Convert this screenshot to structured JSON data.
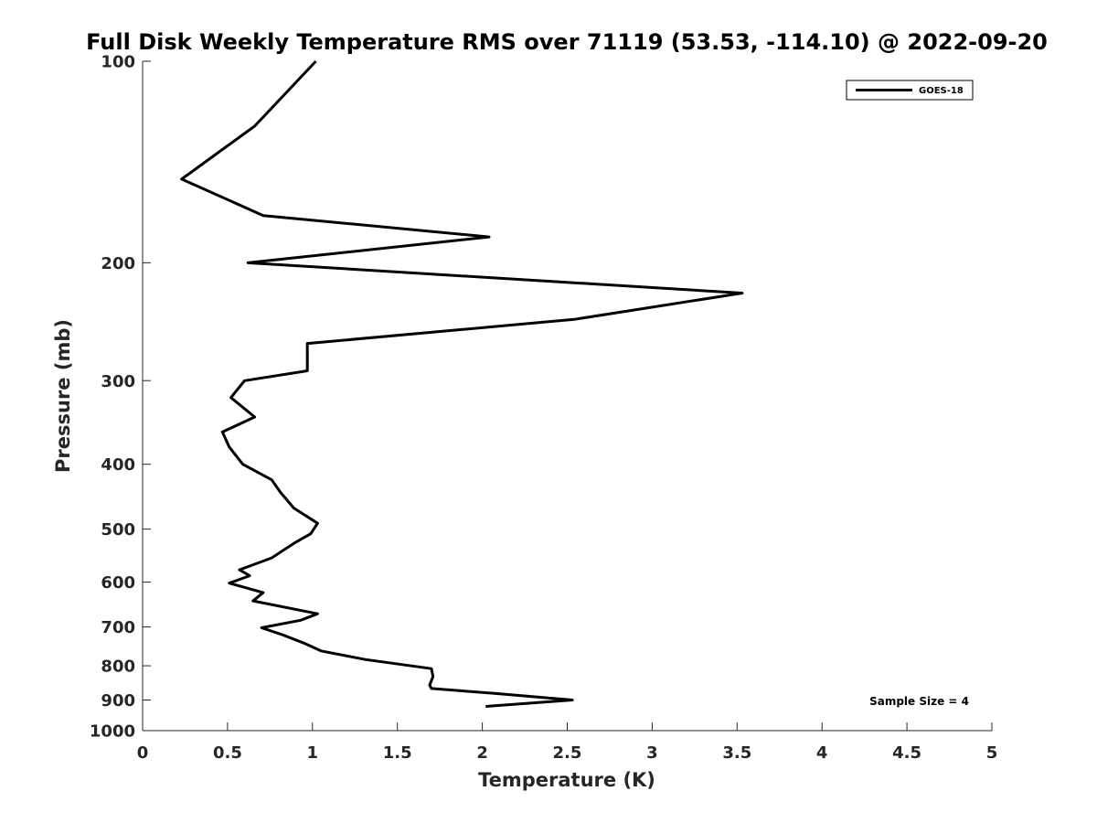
{
  "chart_data": {
    "type": "line",
    "title": "Full Disk Weekly Temperature RMS over 71119 (53.53, -114.10) @ 2022-09-20",
    "xlabel": "Temperature (K)",
    "ylabel": "Pressure (mb)",
    "xlim": [
      0,
      5
    ],
    "ylim": [
      100,
      1000
    ],
    "y_scale": "log",
    "y_reversed": true,
    "x_ticks": [
      0,
      0.5,
      1,
      1.5,
      2,
      2.5,
      3,
      3.5,
      4,
      4.5,
      5
    ],
    "x_tick_labels": [
      "0",
      "0.5",
      "1",
      "1.5",
      "2",
      "2.5",
      "3",
      "3.5",
      "4",
      "4.5",
      "5"
    ],
    "y_ticks": [
      100,
      200,
      300,
      400,
      500,
      600,
      700,
      800,
      900,
      1000
    ],
    "y_tick_labels": [
      "100",
      "200",
      "300",
      "400",
      "500",
      "600",
      "700",
      "800",
      "900",
      "1000"
    ],
    "grid": false,
    "legend_position": "top-right",
    "annotation": "Sample Size = 4",
    "series": [
      {
        "name": "GOES-18",
        "color": "#000000",
        "points": [
          [
            1.02,
            100
          ],
          [
            0.66,
            125
          ],
          [
            0.23,
            150
          ],
          [
            0.71,
            170
          ],
          [
            2.04,
            183
          ],
          [
            0.62,
            200
          ],
          [
            3.53,
            222
          ],
          [
            2.54,
            243
          ],
          [
            0.97,
            264
          ],
          [
            0.97,
            290
          ],
          [
            0.6,
            300
          ],
          [
            0.52,
            318
          ],
          [
            0.66,
            340
          ],
          [
            0.47,
            358
          ],
          [
            0.51,
            377
          ],
          [
            0.59,
            400
          ],
          [
            0.76,
            422
          ],
          [
            0.81,
            440
          ],
          [
            0.89,
            465
          ],
          [
            1.03,
            490
          ],
          [
            0.99,
            508
          ],
          [
            0.89,
            525
          ],
          [
            0.76,
            552
          ],
          [
            0.57,
            575
          ],
          [
            0.63,
            587
          ],
          [
            0.51,
            602
          ],
          [
            0.71,
            622
          ],
          [
            0.65,
            640
          ],
          [
            1.03,
            669
          ],
          [
            0.93,
            684
          ],
          [
            0.7,
            702
          ],
          [
            0.83,
            720
          ],
          [
            0.95,
            740
          ],
          [
            1.05,
            760
          ],
          [
            1.31,
            783
          ],
          [
            1.7,
            808
          ],
          [
            1.71,
            830
          ],
          [
            1.69,
            855
          ],
          [
            1.7,
            865
          ],
          [
            2.08,
            880
          ],
          [
            2.53,
            900
          ],
          [
            2.02,
            920
          ]
        ]
      }
    ]
  }
}
